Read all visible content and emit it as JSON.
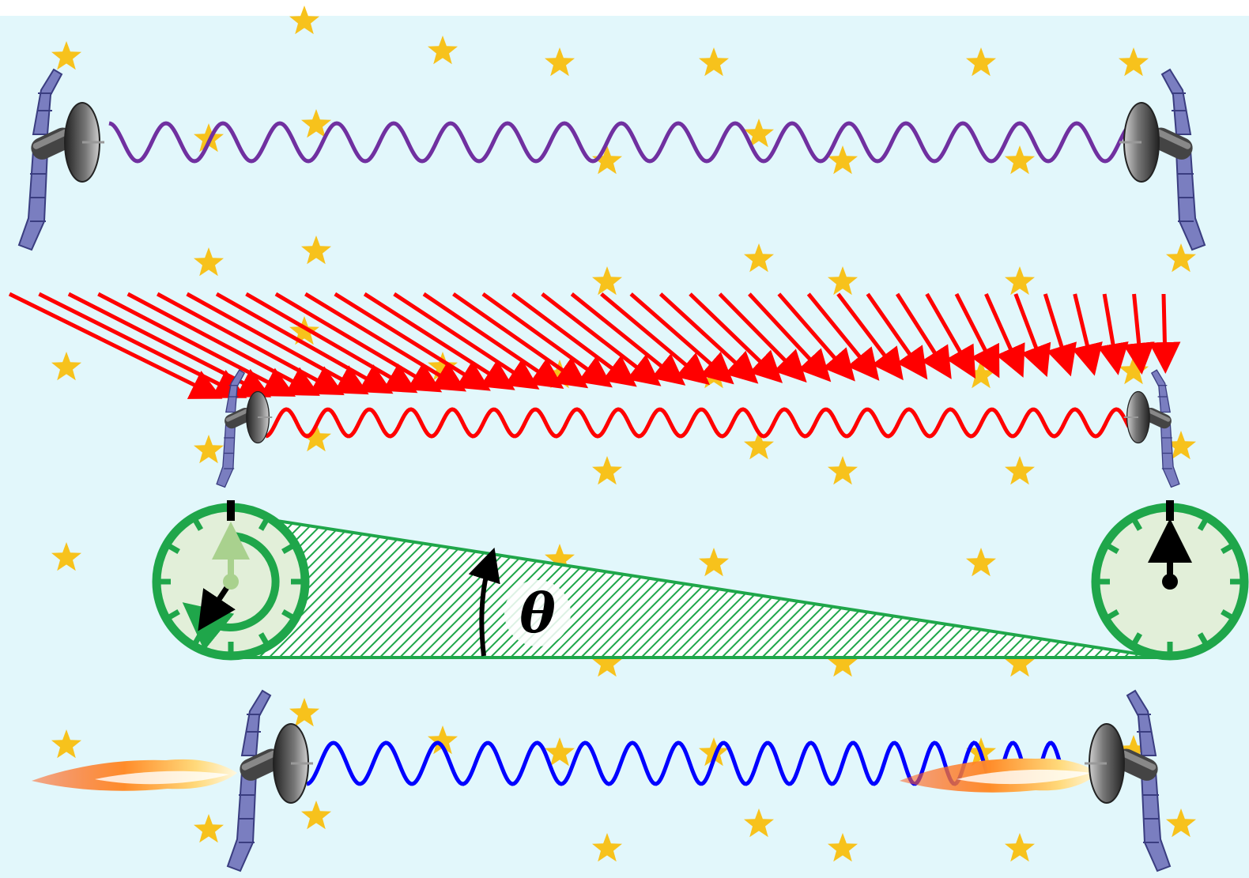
{
  "figure": {
    "colors": {
      "background": "#e2f7fb",
      "star": "#f7c21c",
      "wave_top": "#7030a0",
      "wave_middle": "#ff0000",
      "gravity_arrows": "#ff0000",
      "wave_bottom": "#0000ff",
      "clock_ring": "#1fa64a",
      "clock_face": "#e2efd9",
      "wedge_hatch": "#1fa64a",
      "hand_past": "#a9d18e",
      "hand": "#000000",
      "panel": "#7a7ec0",
      "dish": "#555555",
      "flame": "#ff7a1a"
    },
    "panels": [
      {
        "name": "free-fall-link",
        "wave": "wave_top",
        "arrows": false
      },
      {
        "name": "gravity-field-link",
        "wave": "wave_middle",
        "arrows": true
      },
      {
        "name": "clock-comparison",
        "symbol": "θ"
      },
      {
        "name": "accelerated-link",
        "wave": "wave_bottom",
        "thrusters": true
      }
    ],
    "angle_label": "θ",
    "icons": [
      "satellite-icon",
      "clock-icon",
      "rocket-flame-icon",
      "star-icon",
      "arrow-icon"
    ]
  }
}
